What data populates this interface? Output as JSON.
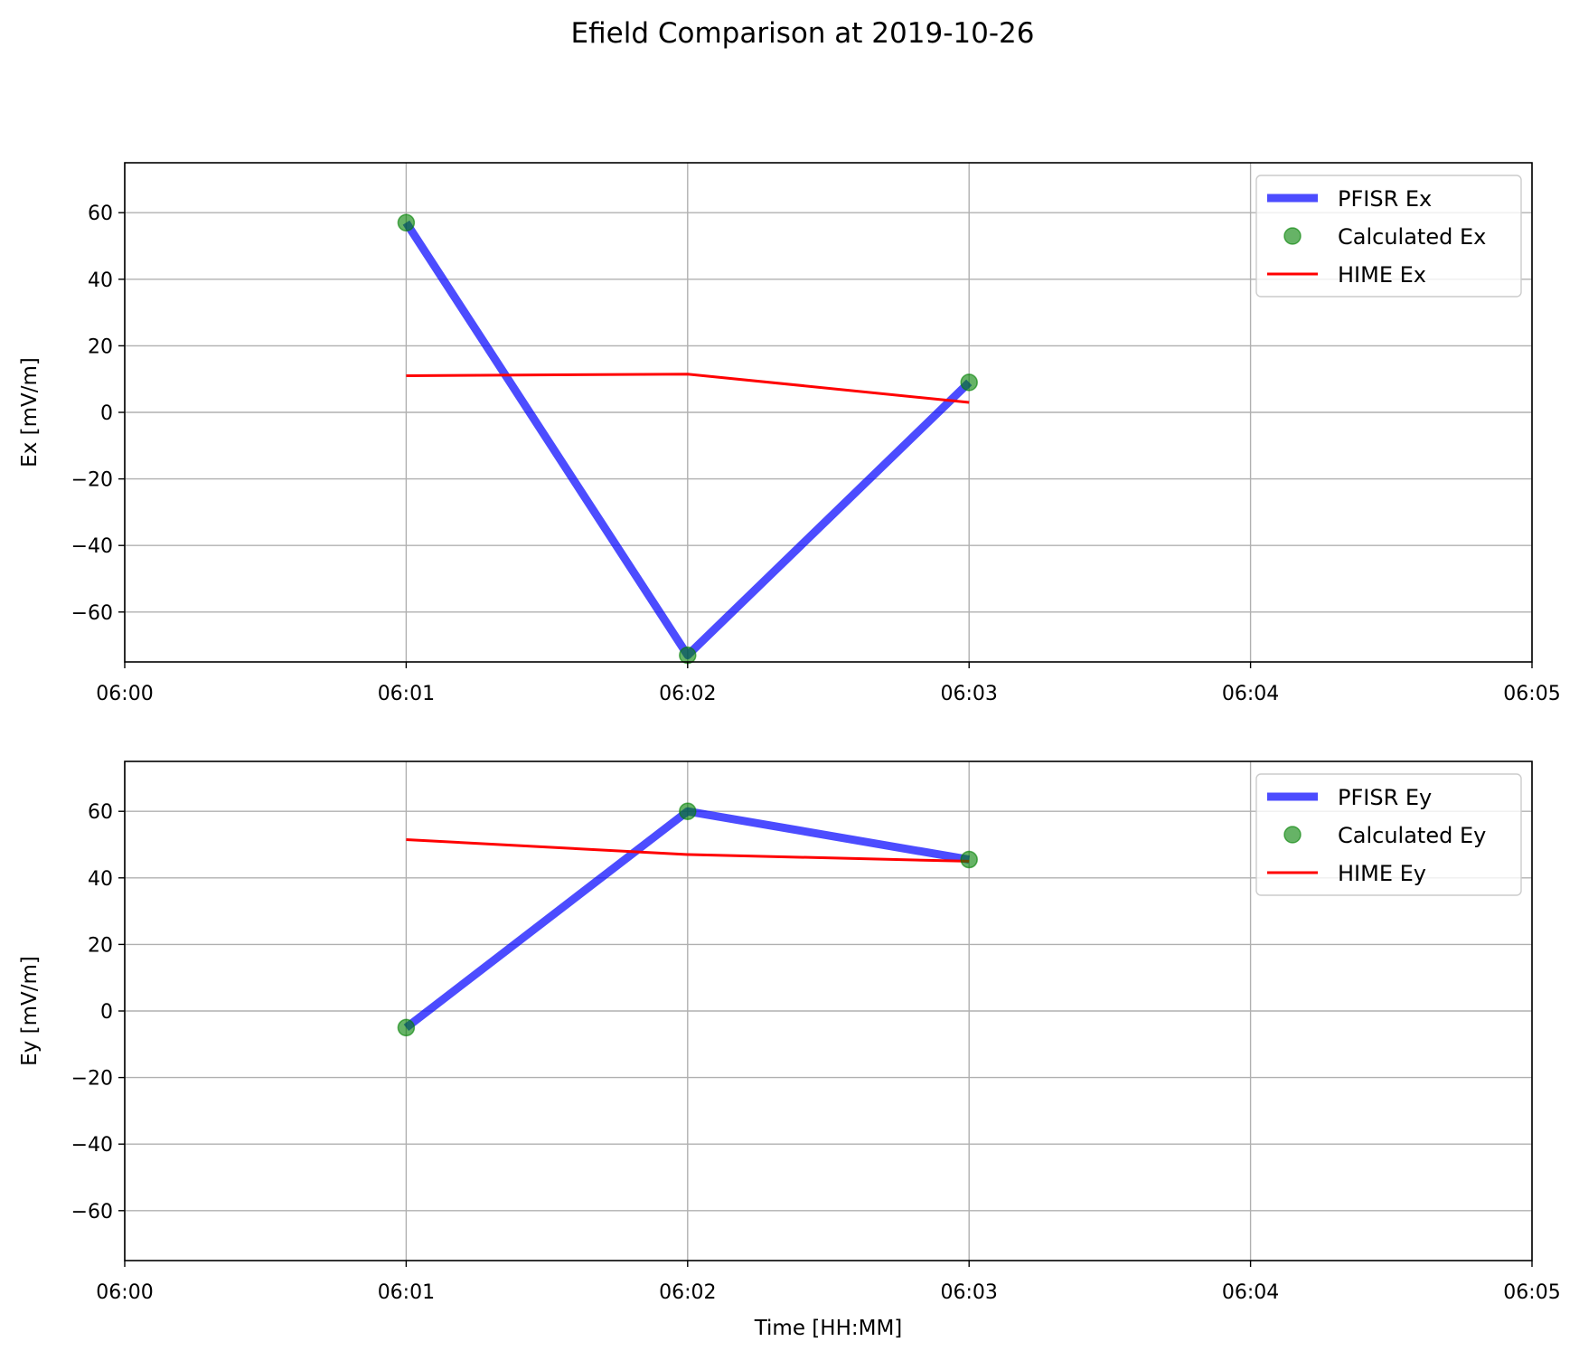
{
  "suptitle": "Efield Comparison at 2019-10-26",
  "colors": {
    "pfisr": "#0000ff",
    "calculated": "#008000",
    "hime": "#ff0000",
    "grid": "#b0b0b0"
  },
  "chart_data": [
    {
      "type": "line",
      "title": "",
      "xlabel": "",
      "ylabel": "Ex [mV/m]",
      "x_ticks": [
        "06:00",
        "06:01",
        "06:02",
        "06:03",
        "06:04",
        "06:05"
      ],
      "x_range": [
        "06:00",
        "06:05"
      ],
      "ylim": [
        -75,
        75
      ],
      "y_ticks": [
        -60,
        -40,
        -20,
        0,
        20,
        40,
        60
      ],
      "y_tick_labels": [
        "−60",
        "−40",
        "−20",
        "0",
        "20",
        "40",
        "60"
      ],
      "grid": true,
      "legend": "top-right",
      "series": [
        {
          "name": "PFISR Ex",
          "kind": "line",
          "color": "#0000ff",
          "x": [
            "06:01",
            "06:02",
            "06:03"
          ],
          "y": [
            57,
            -73,
            9
          ]
        },
        {
          "name": "Calculated Ex",
          "kind": "marker",
          "color": "#008000",
          "x": [
            "06:01",
            "06:02",
            "06:03"
          ],
          "y": [
            57,
            -73,
            9
          ]
        },
        {
          "name": "HIME Ex",
          "kind": "line",
          "color": "#ff0000",
          "x": [
            "06:01",
            "06:02",
            "06:03"
          ],
          "y": [
            11,
            11.5,
            3
          ]
        }
      ]
    },
    {
      "type": "line",
      "title": "",
      "xlabel": "Time [HH:MM]",
      "ylabel": "Ey [mV/m]",
      "x_ticks": [
        "06:00",
        "06:01",
        "06:02",
        "06:03",
        "06:04",
        "06:05"
      ],
      "x_range": [
        "06:00",
        "06:05"
      ],
      "ylim": [
        -75,
        75
      ],
      "y_ticks": [
        -60,
        -40,
        -20,
        0,
        20,
        40,
        60
      ],
      "y_tick_labels": [
        "−60",
        "−40",
        "−20",
        "0",
        "20",
        "40",
        "60"
      ],
      "grid": true,
      "legend": "top-right",
      "series": [
        {
          "name": "PFISR Ey",
          "kind": "line",
          "color": "#0000ff",
          "x": [
            "06:01",
            "06:02",
            "06:03"
          ],
          "y": [
            -5,
            60,
            45.5
          ]
        },
        {
          "name": "Calculated Ey",
          "kind": "marker",
          "color": "#008000",
          "x": [
            "06:01",
            "06:02",
            "06:03"
          ],
          "y": [
            -5,
            60,
            45.5
          ]
        },
        {
          "name": "HIME Ey",
          "kind": "line",
          "color": "#ff0000",
          "x": [
            "06:01",
            "06:02",
            "06:03"
          ],
          "y": [
            51.5,
            47,
            45
          ]
        }
      ]
    }
  ]
}
